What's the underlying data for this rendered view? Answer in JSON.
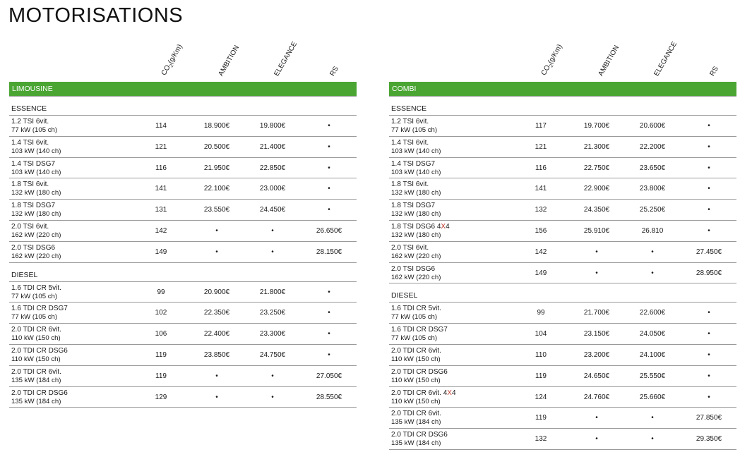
{
  "title": "MOTORISATIONS",
  "columns": {
    "co2_prefix": "CO",
    "co2_sub": "2",
    "co2_suffix": "(g/Km)",
    "ambition": "AMBITION",
    "elegance": "ELEGANCE",
    "rs": "RS"
  },
  "panels": [
    {
      "band": "LIMOUSINE",
      "sections": [
        {
          "title": "ESSENCE",
          "rows": [
            {
              "line1": "1.2 TSI 6vit.",
              "line2": "77 kW (105 ch)",
              "co2": "114",
              "ambition": "18.900€",
              "elegance": "19.800€",
              "rs": "•"
            },
            {
              "line1": "1.4 TSI 6vit.",
              "line2": "103 kW (140 ch)",
              "co2": "121",
              "ambition": "20.500€",
              "elegance": "21.400€",
              "rs": "•"
            },
            {
              "line1": "1.4 TSI DSG7",
              "line2": "103 kW (140 ch)",
              "co2": "116",
              "ambition": "21.950€",
              "elegance": "22.850€",
              "rs": "•"
            },
            {
              "line1": "1.8 TSI 6vit.",
              "line2": "132 kW (180 ch)",
              "co2": "141",
              "ambition": "22.100€",
              "elegance": "23.000€",
              "rs": "•"
            },
            {
              "line1": "1.8 TSI DSG7",
              "line2": "132 kW (180 ch)",
              "co2": "131",
              "ambition": "23.550€",
              "elegance": "24.450€",
              "rs": "•"
            },
            {
              "line1": "2.0 TSI 6vit.",
              "line2": "162 kW (220 ch)",
              "co2": "142",
              "ambition": "•",
              "elegance": "•",
              "rs": "26.650€"
            },
            {
              "line1": "2.0 TSI DSG6",
              "line2": "162 kW (220 ch)",
              "co2": "149",
              "ambition": "•",
              "elegance": "•",
              "rs": "28.150€"
            }
          ]
        },
        {
          "title": "DIESEL",
          "rows": [
            {
              "line1": "1.6 TDI CR 5vit.",
              "line2": "77 kW (105 ch)",
              "co2": "99",
              "ambition": "20.900€",
              "elegance": "21.800€",
              "rs": "•"
            },
            {
              "line1": "1.6 TDI CR DSG7",
              "line2": "77 kW (105 ch)",
              "co2": "102",
              "ambition": "22.350€",
              "elegance": "23.250€",
              "rs": "•"
            },
            {
              "line1": "2.0 TDI CR 6vit.",
              "line2": "110 kW (150 ch)",
              "co2": "106",
              "ambition": "22.400€",
              "elegance": "23.300€",
              "rs": "•"
            },
            {
              "line1": "2.0 TDI CR DSG6",
              "line2": "110 kW (150 ch)",
              "co2": "119",
              "ambition": "23.850€",
              "elegance": "24.750€",
              "rs": "•"
            },
            {
              "line1": "2.0 TDI CR 6vit.",
              "line2": "135 kW (184 ch)",
              "co2": "119",
              "ambition": "•",
              "elegance": "•",
              "rs": "27.050€"
            },
            {
              "line1": "2.0 TDI CR DSG6",
              "line2": "135 kW (184 ch)",
              "co2": "129",
              "ambition": "•",
              "elegance": "•",
              "rs": "28.550€"
            }
          ]
        }
      ]
    },
    {
      "band": "COMBI",
      "sections": [
        {
          "title": "ESSENCE",
          "rows": [
            {
              "line1": "1.2 TSI 6vit.",
              "line2": "77 kW (105 ch)",
              "co2": "117",
              "ambition": "19.700€",
              "elegance": "20.600€",
              "rs": "•"
            },
            {
              "line1": "1.4 TSI 6vit.",
              "line2": "103 kW (140 ch)",
              "co2": "121",
              "ambition": "21.300€",
              "elegance": "22.200€",
              "rs": "•"
            },
            {
              "line1": "1.4 TSI DSG7",
              "line2": "103 kW (140 ch)",
              "co2": "116",
              "ambition": "22.750€",
              "elegance": "23.650€",
              "rs": "•"
            },
            {
              "line1": "1.8 TSI 6vit.",
              "line2": "132 kW (180 ch)",
              "co2": "141",
              "ambition": "22.900€",
              "elegance": "23.800€",
              "rs": "•"
            },
            {
              "line1": "1.8 TSI DSG7",
              "line2": "132 kW (180 ch)",
              "co2": "132",
              "ambition": "24.350€",
              "elegance": "25.250€",
              "rs": "•"
            },
            {
              "line1": "1.8 TSI DSG6 4",
              "x4": "X",
              "line1_tail": "4",
              "line2": "132 kW (180 ch)",
              "co2": "156",
              "ambition": "25.910€",
              "elegance": "26.810",
              "rs": "•"
            },
            {
              "line1": "2.0 TSI 6vit.",
              "line2": "162 kW (220 ch)",
              "co2": "142",
              "ambition": "•",
              "elegance": "•",
              "rs": "27.450€"
            },
            {
              "line1": "2.0 TSI DSG6",
              "line2": "162 kW (220 ch)",
              "co2": "149",
              "ambition": "•",
              "elegance": "•",
              "rs": "28.950€"
            }
          ]
        },
        {
          "title": "DIESEL",
          "rows": [
            {
              "line1": "1.6 TDI CR 5vit.",
              "line2": "77 kW (105 ch)",
              "co2": "99",
              "ambition": "21.700€",
              "elegance": "22.600€",
              "rs": "•"
            },
            {
              "line1": "1.6 TDI CR DSG7",
              "line2": "77 kW (105 ch)",
              "co2": "104",
              "ambition": "23.150€",
              "elegance": "24.050€",
              "rs": "•"
            },
            {
              "line1": "2.0 TDI CR 6vit.",
              "line2": "110 kW (150 ch)",
              "co2": "110",
              "ambition": "23.200€",
              "elegance": "24.100€",
              "rs": "•"
            },
            {
              "line1": "2.0 TDI CR DSG6",
              "line2": "110 kW (150 ch)",
              "co2": "119",
              "ambition": "24.650€",
              "elegance": "25.550€",
              "rs": "•"
            },
            {
              "line1": "2.0 TDI CR 6vit. 4",
              "x4": "X",
              "line1_tail": "4",
              "line2": "110 kW (150 ch)",
              "co2": "124",
              "ambition": "24.760€",
              "elegance": "25.660€",
              "rs": "•"
            },
            {
              "line1": "2.0 TDI CR 6vit.",
              "line2": "135 kW (184 ch)",
              "co2": "119",
              "ambition": "•",
              "elegance": "•",
              "rs": "27.850€"
            },
            {
              "line1": "2.0 TDI CR DSG6",
              "line2": "135 kW (184 ch)",
              "co2": "132",
              "ambition": "•",
              "elegance": "•",
              "rs": "29.350€"
            }
          ]
        }
      ]
    }
  ]
}
